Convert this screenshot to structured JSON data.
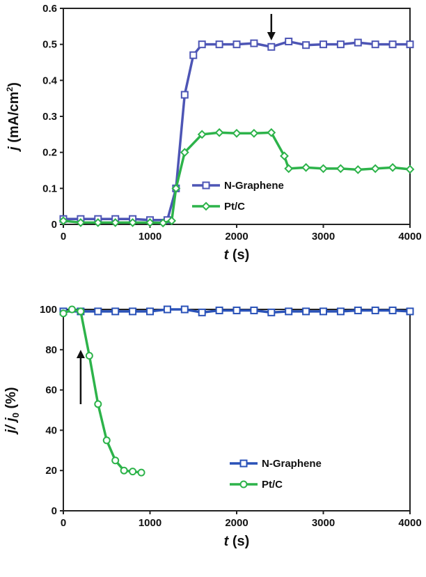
{
  "chart_data": [
    {
      "type": "line",
      "xlabel_var": "t",
      "xlabel_unit": " (s)",
      "ylabel_var": "j",
      "ylabel_unit": " (mA/cm",
      "ylabel_sup": "2",
      "ylabel_close": ")",
      "xlim": [
        0,
        4000
      ],
      "ylim": [
        0,
        0.6
      ],
      "x_ticks": [
        "0",
        "1000",
        "2000",
        "3000",
        "4000"
      ],
      "y_ticks": [
        "0",
        "0.1",
        "0.2",
        "0.3",
        "0.4",
        "0.5",
        "0.6"
      ],
      "grid": false,
      "legend_position": "center-right",
      "annotation_arrow_x": 2400,
      "series": [
        {
          "name": "N-Graphene",
          "color": "#4d55b5",
          "marker": "square",
          "points": [
            [
              0,
              0.015
            ],
            [
              200,
              0.015
            ],
            [
              400,
              0.015
            ],
            [
              600,
              0.015
            ],
            [
              800,
              0.015
            ],
            [
              1000,
              0.012
            ],
            [
              1200,
              0.012
            ],
            [
              1300,
              0.1
            ],
            [
              1400,
              0.36
            ],
            [
              1500,
              0.47
            ],
            [
              1600,
              0.5
            ],
            [
              1800,
              0.5
            ],
            [
              2000,
              0.5
            ],
            [
              2200,
              0.503
            ],
            [
              2400,
              0.493
            ],
            [
              2600,
              0.508
            ],
            [
              2800,
              0.498
            ],
            [
              3000,
              0.5
            ],
            [
              3200,
              0.5
            ],
            [
              3400,
              0.505
            ],
            [
              3600,
              0.5
            ],
            [
              3800,
              0.5
            ],
            [
              4000,
              0.5
            ]
          ]
        },
        {
          "name": "Pt/C",
          "color": "#2db34a",
          "marker": "diamond",
          "points": [
            [
              0,
              0.01
            ],
            [
              200,
              0.005
            ],
            [
              400,
              0.005
            ],
            [
              600,
              0.005
            ],
            [
              800,
              0.005
            ],
            [
              1000,
              0.005
            ],
            [
              1150,
              0.004
            ],
            [
              1250,
              0.01
            ],
            [
              1300,
              0.1
            ],
            [
              1400,
              0.2
            ],
            [
              1600,
              0.25
            ],
            [
              1800,
              0.255
            ],
            [
              2000,
              0.253
            ],
            [
              2200,
              0.253
            ],
            [
              2400,
              0.255
            ],
            [
              2550,
              0.19
            ],
            [
              2600,
              0.155
            ],
            [
              2800,
              0.158
            ],
            [
              3000,
              0.155
            ],
            [
              3200,
              0.155
            ],
            [
              3400,
              0.152
            ],
            [
              3600,
              0.155
            ],
            [
              3800,
              0.158
            ],
            [
              4000,
              0.153
            ]
          ]
        }
      ]
    },
    {
      "type": "line",
      "xlabel_var": "t",
      "xlabel_unit": " (s)",
      "ylabel_var": "j/ j",
      "ylabel_sub": "0",
      "ylabel_unit": " (%)",
      "xlim": [
        0,
        4000
      ],
      "ylim": [
        0,
        100
      ],
      "x_ticks": [
        "0",
        "1000",
        "2000",
        "3000",
        "4000"
      ],
      "y_ticks": [
        "0",
        "20",
        "40",
        "60",
        "80",
        "100"
      ],
      "grid": false,
      "legend_position": "bottom-right",
      "annotation_arrow_x": 200,
      "series": [
        {
          "name": "N-Graphene",
          "color": "#2a52b8",
          "marker": "square",
          "points": [
            [
              0,
              99
            ],
            [
              200,
              99
            ],
            [
              400,
              99
            ],
            [
              600,
              99
            ],
            [
              800,
              99
            ],
            [
              1000,
              99
            ],
            [
              1200,
              100
            ],
            [
              1400,
              100
            ],
            [
              1600,
              98.5
            ],
            [
              1800,
              99.5
            ],
            [
              2000,
              99.5
            ],
            [
              2200,
              99.5
            ],
            [
              2400,
              98.5
            ],
            [
              2600,
              99
            ],
            [
              2800,
              99
            ],
            [
              3000,
              99
            ],
            [
              3200,
              99
            ],
            [
              3400,
              99.5
            ],
            [
              3600,
              99.5
            ],
            [
              3800,
              99.5
            ],
            [
              4000,
              99
            ]
          ]
        },
        {
          "name": "Pt/C",
          "color": "#2db34a",
          "marker": "circle",
          "points": [
            [
              0,
              98
            ],
            [
              100,
              100
            ],
            [
              200,
              99
            ],
            [
              300,
              77
            ],
            [
              400,
              53
            ],
            [
              500,
              35
            ],
            [
              600,
              25
            ],
            [
              700,
              20
            ],
            [
              800,
              19.5
            ],
            [
              900,
              19
            ]
          ]
        }
      ]
    }
  ]
}
